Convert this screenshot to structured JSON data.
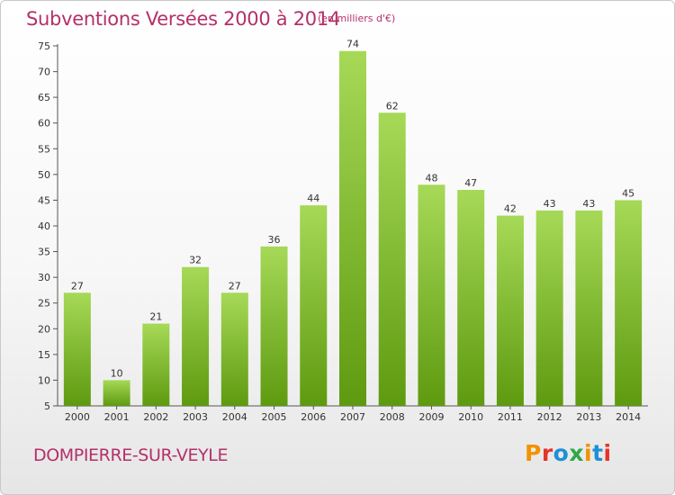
{
  "header": {
    "title": "Subventions Versées 2000 à 2014",
    "unit": "(en milliers d'€)"
  },
  "footer": {
    "place": "DOMPIERRE-SUR-VEYLE",
    "brand": "Proxiti",
    "brand_colors": [
      "#f39200",
      "#e6332a",
      "#1e90d6",
      "#2ea84a",
      "#f39200",
      "#1e90d6",
      "#e6332a"
    ]
  },
  "colors": {
    "title": "#b4306a",
    "bar_top": "#a6d957",
    "bar_bottom": "#5e9a10",
    "axis": "#555555",
    "grid": "#dddddd"
  },
  "chart_data": {
    "type": "bar",
    "categories": [
      "2000",
      "2001",
      "2002",
      "2003",
      "2004",
      "2005",
      "2006",
      "2007",
      "2008",
      "2009",
      "2010",
      "2011",
      "2012",
      "2013",
      "2014"
    ],
    "values": [
      27,
      10,
      21,
      32,
      27,
      36,
      44,
      74,
      62,
      48,
      47,
      42,
      43,
      43,
      45
    ],
    "title": "Subventions Versées 2000 à 2014",
    "subtitle": "(en milliers d'€)",
    "ylim": [
      5,
      75
    ],
    "yticks": [
      5,
      10,
      15,
      20,
      25,
      30,
      35,
      40,
      45,
      50,
      55,
      60,
      65,
      70,
      75
    ],
    "grid": false
  }
}
